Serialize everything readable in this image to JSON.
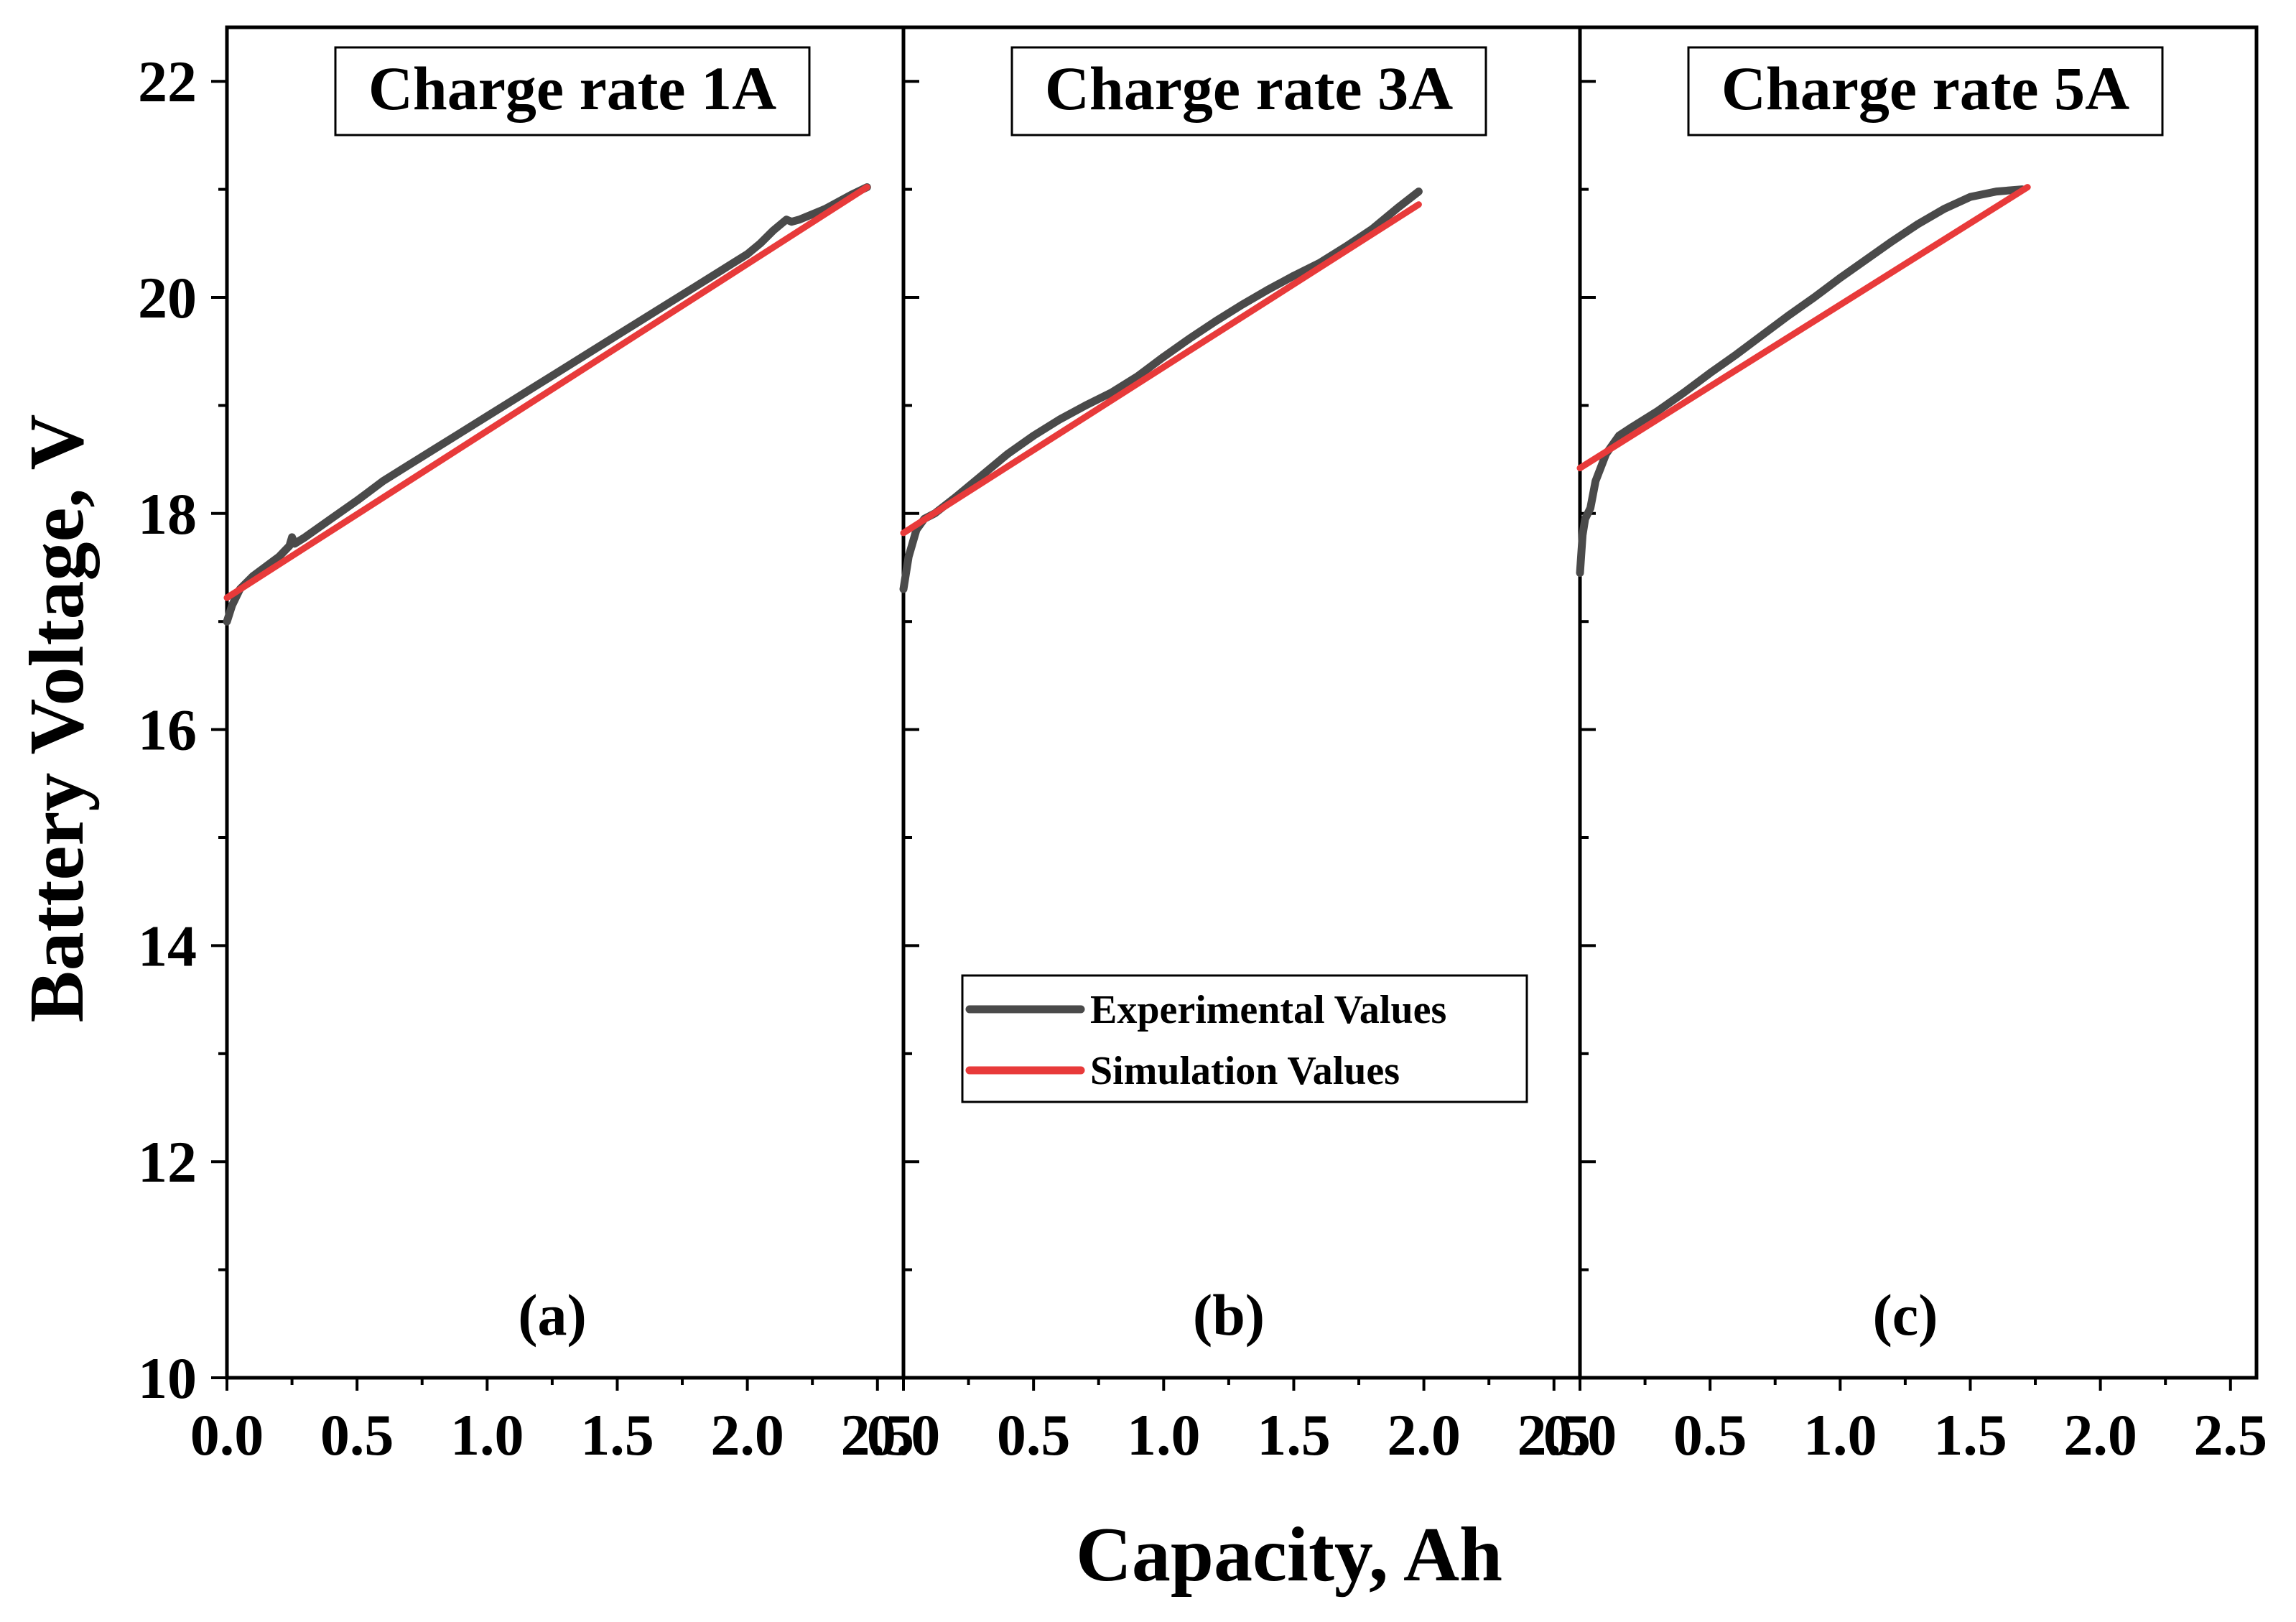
{
  "chart_data": {
    "type": "line",
    "ylabel": "Battery Voltage, V",
    "xlabel": "Capacity, Ah",
    "xlim": [
      0.0,
      2.6
    ],
    "ylim": [
      10,
      22.5
    ],
    "x_ticks": [
      "0.0",
      "0.5",
      "1.0",
      "1.5",
      "2.0",
      "2.5"
    ],
    "y_ticks": [
      "10",
      "12",
      "14",
      "16",
      "18",
      "20",
      "22"
    ],
    "legend": {
      "placement": "panel-b middle",
      "entries": [
        {
          "label": "Experimental Values",
          "color": "#4a4a4a"
        },
        {
          "label": "Simulation Values",
          "color": "#e83a3a"
        }
      ]
    },
    "panels": [
      {
        "title": "Charge rate 1A",
        "tag": "(a)",
        "series": [
          {
            "name": "Experimental Values",
            "color": "#4a4a4a",
            "x": [
              0.0,
              0.02,
              0.05,
              0.1,
              0.2,
              0.24,
              0.25,
              0.26,
              0.3,
              0.4,
              0.5,
              0.6,
              0.7,
              0.8,
              0.9,
              1.0,
              1.1,
              1.2,
              1.3,
              1.4,
              1.5,
              1.6,
              1.7,
              1.8,
              1.9,
              2.0,
              2.05,
              2.1,
              2.15,
              2.17,
              2.2,
              2.3,
              2.4,
              2.46
            ],
            "y": [
              17.0,
              17.15,
              17.3,
              17.42,
              17.6,
              17.7,
              17.78,
              17.72,
              17.78,
              17.95,
              18.12,
              18.3,
              18.45,
              18.6,
              18.75,
              18.9,
              19.05,
              19.2,
              19.35,
              19.5,
              19.65,
              19.8,
              19.95,
              20.1,
              20.25,
              20.4,
              20.5,
              20.62,
              20.72,
              20.7,
              20.72,
              20.82,
              20.95,
              21.02
            ]
          },
          {
            "name": "Simulation Values",
            "color": "#e83a3a",
            "x": [
              0.0,
              2.46
            ],
            "y": [
              17.22,
              21.02
            ]
          }
        ]
      },
      {
        "title": "Charge rate 3A",
        "tag": "(b)",
        "series": [
          {
            "name": "Experimental Values",
            "color": "#4a4a4a",
            "x": [
              0.0,
              0.02,
              0.05,
              0.08,
              0.12,
              0.2,
              0.3,
              0.4,
              0.5,
              0.6,
              0.7,
              0.8,
              0.9,
              1.0,
              1.1,
              1.2,
              1.3,
              1.4,
              1.5,
              1.6,
              1.7,
              1.8,
              1.9,
              1.98
            ],
            "y": [
              17.3,
              17.6,
              17.85,
              17.95,
              18.0,
              18.15,
              18.35,
              18.55,
              18.72,
              18.87,
              19.0,
              19.12,
              19.27,
              19.45,
              19.62,
              19.78,
              19.93,
              20.07,
              20.2,
              20.32,
              20.47,
              20.63,
              20.83,
              20.98
            ]
          },
          {
            "name": "Simulation Values",
            "color": "#e83a3a",
            "x": [
              0.0,
              1.98
            ],
            "y": [
              17.82,
              20.86
            ]
          }
        ]
      },
      {
        "title": "Charge rate 5A",
        "tag": "(c)",
        "series": [
          {
            "name": "Experimental Values",
            "color": "#4a4a4a",
            "x": [
              0.0,
              0.01,
              0.02,
              0.04,
              0.06,
              0.1,
              0.15,
              0.2,
              0.3,
              0.4,
              0.5,
              0.6,
              0.7,
              0.8,
              0.9,
              1.0,
              1.1,
              1.2,
              1.3,
              1.4,
              1.5,
              1.6,
              1.7
            ],
            "y": [
              17.45,
              17.8,
              17.95,
              18.05,
              18.3,
              18.55,
              18.72,
              18.8,
              18.95,
              19.12,
              19.3,
              19.47,
              19.65,
              19.83,
              20.0,
              20.18,
              20.35,
              20.52,
              20.68,
              20.82,
              20.93,
              20.98,
              21.0
            ]
          },
          {
            "name": "Simulation Values",
            "color": "#e83a3a",
            "x": [
              0.0,
              1.72
            ],
            "y": [
              18.42,
              21.02
            ]
          }
        ]
      }
    ]
  }
}
